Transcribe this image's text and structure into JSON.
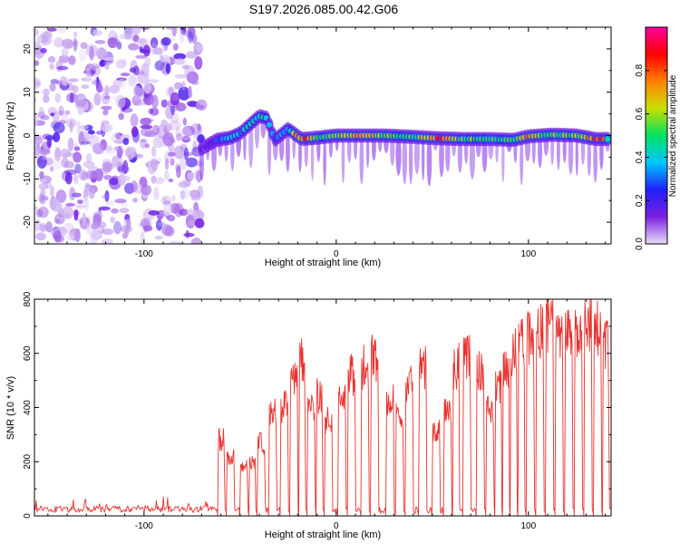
{
  "title": "S197.2026.085.00.42.G06",
  "colors": {
    "line": "#e8322e",
    "axis": "#000000",
    "background": "#ffffff"
  },
  "chart_data": [
    {
      "id": "spectrogram",
      "type": "heatmap",
      "xlabel": "Height of straight line (km)",
      "ylabel": "Frequency (Hz)",
      "xlim": [
        -157,
        143
      ],
      "ylim": [
        -25,
        25
      ],
      "x_ticks": [
        -100,
        0,
        100
      ],
      "y_ticks": [
        -20,
        -10,
        0,
        10,
        20
      ],
      "colorbar": {
        "label": "Normalized spectral amplitude",
        "range": [
          0,
          1
        ],
        "ticks": [
          0.0,
          0.2,
          0.4,
          0.6,
          0.8
        ],
        "tick_labels": [
          "0.0",
          "0.2",
          "0.4",
          "0.6",
          "0.8"
        ],
        "colormap": [
          "#e8e0f8",
          "#7b1fe0",
          "#2020ff",
          "#00c8ff",
          "#00e060",
          "#c8e000",
          "#ff8000",
          "#ff0000",
          "#ff00a0"
        ]
      },
      "noise_region_x": [
        -157,
        -70
      ],
      "signal_ridge": [
        {
          "x": -70,
          "f": -3.0,
          "a": 0.2
        },
        {
          "x": -62,
          "f": -1.0,
          "a": 0.3
        },
        {
          "x": -55,
          "f": -0.5,
          "a": 0.35
        },
        {
          "x": -50,
          "f": 0.5,
          "a": 0.4
        },
        {
          "x": -45,
          "f": 2.5,
          "a": 0.45
        },
        {
          "x": -40,
          "f": 4.5,
          "a": 0.5
        },
        {
          "x": -36,
          "f": 4.0,
          "a": 0.4
        },
        {
          "x": -32,
          "f": -1.0,
          "a": 0.3
        },
        {
          "x": -25,
          "f": 1.5,
          "a": 0.35
        },
        {
          "x": -18,
          "f": -0.8,
          "a": 0.95
        },
        {
          "x": -10,
          "f": -0.5,
          "a": 0.55
        },
        {
          "x": 0,
          "f": 0.0,
          "a": 0.6
        },
        {
          "x": 12,
          "f": 0.0,
          "a": 0.75
        },
        {
          "x": 25,
          "f": 0.0,
          "a": 0.6
        },
        {
          "x": 40,
          "f": -0.3,
          "a": 0.55
        },
        {
          "x": 52,
          "f": -0.6,
          "a": 0.9
        },
        {
          "x": 65,
          "f": -0.8,
          "a": 0.55
        },
        {
          "x": 80,
          "f": -0.8,
          "a": 0.55
        },
        {
          "x": 92,
          "f": -1.0,
          "a": 0.5
        },
        {
          "x": 100,
          "f": -0.2,
          "a": 0.75
        },
        {
          "x": 112,
          "f": 0.2,
          "a": 0.6
        },
        {
          "x": 125,
          "f": 0.0,
          "a": 0.6
        },
        {
          "x": 135,
          "f": -0.8,
          "a": 0.95
        },
        {
          "x": 142,
          "f": -0.8,
          "a": 0.6
        }
      ]
    },
    {
      "id": "snr",
      "type": "line",
      "xlabel": "Height of straight line (km)",
      "ylabel": "SNR (10 * v/v)",
      "xlim": [
        -157,
        143
      ],
      "ylim": [
        0,
        800
      ],
      "x_ticks": [
        -100,
        0,
        100
      ],
      "y_ticks": [
        0,
        200,
        400,
        600,
        800
      ],
      "series": [
        {
          "name": "SNR",
          "color": "#e8322e",
          "noise_floor_x": [
            -157,
            -62
          ],
          "noise_floor_level": 25,
          "bursts": [
            {
              "x": -60,
              "peak": 320
            },
            {
              "x": -55,
              "peak": 250
            },
            {
              "x": -48,
              "peak": 200
            },
            {
              "x": -44,
              "peak": 230
            },
            {
              "x": -39,
              "peak": 300
            },
            {
              "x": -33,
              "peak": 420
            },
            {
              "x": -27,
              "peak": 450
            },
            {
              "x": -22,
              "peak": 560
            },
            {
              "x": -18,
              "peak": 640
            },
            {
              "x": -13,
              "peak": 470
            },
            {
              "x": -9,
              "peak": 500
            },
            {
              "x": -4,
              "peak": 390
            },
            {
              "x": 3,
              "peak": 480
            },
            {
              "x": 8,
              "peak": 580
            },
            {
              "x": 15,
              "peak": 620
            },
            {
              "x": 20,
              "peak": 650
            },
            {
              "x": 28,
              "peak": 480
            },
            {
              "x": 33,
              "peak": 420
            },
            {
              "x": 38,
              "peak": 560
            },
            {
              "x": 45,
              "peak": 610
            },
            {
              "x": 52,
              "peak": 360
            },
            {
              "x": 58,
              "peak": 440
            },
            {
              "x": 62,
              "peak": 620
            },
            {
              "x": 68,
              "peak": 650
            },
            {
              "x": 75,
              "peak": 600
            },
            {
              "x": 80,
              "peak": 430
            },
            {
              "x": 84,
              "peak": 550
            },
            {
              "x": 88,
              "peak": 600
            },
            {
              "x": 92,
              "peak": 680
            },
            {
              "x": 96,
              "peak": 720
            },
            {
              "x": 101,
              "peak": 740
            },
            {
              "x": 106,
              "peak": 760
            },
            {
              "x": 111,
              "peak": 800
            },
            {
              "x": 116,
              "peak": 720
            },
            {
              "x": 121,
              "peak": 770
            },
            {
              "x": 126,
              "peak": 760
            },
            {
              "x": 131,
              "peak": 790
            },
            {
              "x": 136,
              "peak": 780
            },
            {
              "x": 140,
              "peak": 700
            }
          ]
        }
      ]
    }
  ]
}
